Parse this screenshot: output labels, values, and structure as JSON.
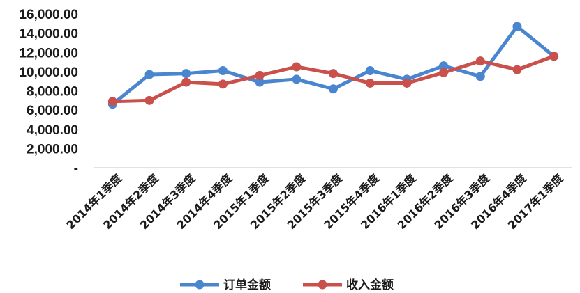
{
  "chart_data": {
    "type": "line",
    "categories": [
      "2014年1季度",
      "2014年2季度",
      "2014年3季度",
      "2014年4季度",
      "2015年1季度",
      "2015年2季度",
      "2015年3季度",
      "2015年4季度",
      "2016年1季度",
      "2016年2季度",
      "2016年3季度",
      "2016年4季度",
      "2017年1季度"
    ],
    "series": [
      {
        "name": "订单金额",
        "color": "#4a86d0",
        "values": [
          6600,
          9700,
          9800,
          10100,
          8900,
          9200,
          8200,
          10100,
          9200,
          10600,
          9500,
          14700,
          11600
        ]
      },
      {
        "name": "收入金额",
        "color": "#c9504b",
        "values": [
          6900,
          7000,
          8900,
          8700,
          9600,
          10500,
          9800,
          8800,
          8800,
          9900,
          11100,
          10200,
          11600
        ]
      }
    ],
    "yticks": [
      "-",
      "2,000.00",
      "4,000.00",
      "6,000.00",
      "8,000.00",
      "10,000.00",
      "12,000.00",
      "14,000.00",
      "16,000.00"
    ],
    "ylim": [
      0,
      16000
    ],
    "grid": false,
    "legend_position": "bottom"
  }
}
